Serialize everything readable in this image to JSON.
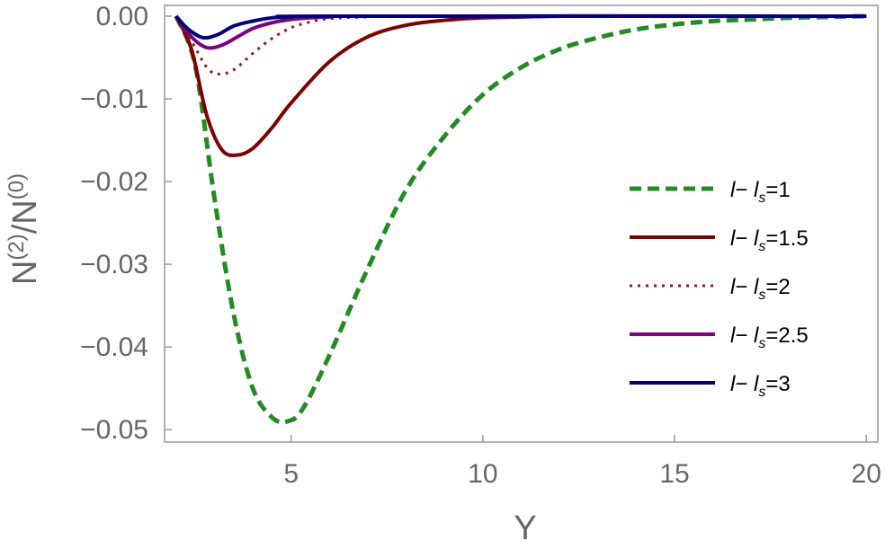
{
  "chart_data": {
    "type": "line",
    "title": "",
    "xlabel": "Y",
    "ylabel": "N(2)/N(0)",
    "ylabel_parts": {
      "n1": "N",
      "sup1": "(2)",
      "slash": "/",
      "n2": "N",
      "sup2": "(0)"
    },
    "xlim": [
      1.7,
      20.3
    ],
    "ylim": [
      -0.0515,
      0.0013
    ],
    "x_ticks": [
      5,
      10,
      15,
      20
    ],
    "x_tick_labels": [
      "5",
      "10",
      "15",
      "20"
    ],
    "y_ticks": [
      0,
      -0.01,
      -0.02,
      -0.03,
      -0.04,
      -0.05
    ],
    "y_tick_labels": [
      "0.00",
      "−0.01",
      "−0.02",
      "−0.03",
      "−0.04",
      "−0.05"
    ],
    "grid": false,
    "legend_position": "right",
    "series": [
      {
        "name": "l− l_s=1",
        "label": {
          "a": "l",
          "b": "− ",
          "c": "l",
          "sub": "s",
          "d": "=1"
        },
        "color": "#228b22",
        "dash": "dashed",
        "width": 5,
        "x": [
          2,
          2.5,
          3,
          3.5,
          4,
          4.5,
          4.9,
          5.3,
          6,
          7,
          8,
          9,
          10,
          11,
          12,
          13,
          14,
          15,
          16,
          17,
          18,
          19,
          20
        ],
        "y": [
          0,
          -0.006,
          -0.022,
          -0.036,
          -0.045,
          -0.0485,
          -0.049,
          -0.0475,
          -0.041,
          -0.0305,
          -0.021,
          -0.0145,
          -0.0095,
          -0.0062,
          -0.004,
          -0.0026,
          -0.0016,
          -0.001,
          -0.0006,
          -0.0004,
          -0.0002,
          -0.0001,
          0
        ]
      },
      {
        "name": "l− l_s=1.5",
        "label": {
          "a": "l",
          "b": "− ",
          "c": "l",
          "sub": "s",
          "d": "=1.5"
        },
        "color": "#800000",
        "dash": "solid",
        "width": 4,
        "x": [
          2,
          2.4,
          2.8,
          3.2,
          3.6,
          4,
          4.5,
          5,
          6,
          7,
          8,
          9,
          10,
          11,
          12,
          14,
          20
        ],
        "y": [
          0,
          -0.004,
          -0.012,
          -0.0162,
          -0.0168,
          -0.016,
          -0.0135,
          -0.0105,
          -0.0055,
          -0.0025,
          -0.0011,
          -0.0005,
          -0.0002,
          -0.0001,
          0,
          0,
          0
        ]
      },
      {
        "name": "l− l_s=2",
        "label": {
          "a": "l",
          "b": "− ",
          "c": "l",
          "sub": "s",
          "d": "=2"
        },
        "color": "#8b1a1a",
        "dash": "dotted",
        "width": 3,
        "x": [
          2,
          2.4,
          2.8,
          3.1,
          3.5,
          4,
          4.5,
          5,
          5.5,
          6,
          7,
          8,
          20
        ],
        "y": [
          0,
          -0.003,
          -0.0062,
          -0.007,
          -0.0065,
          -0.0045,
          -0.0027,
          -0.0014,
          -0.0007,
          -0.0003,
          -0.0001,
          0,
          0
        ]
      },
      {
        "name": "l− l_s=2.5",
        "label": {
          "a": "l",
          "b": "− ",
          "c": "l",
          "sub": "s",
          "d": "=2.5"
        },
        "color": "#800080",
        "dash": "solid",
        "width": 4,
        "x": [
          2,
          2.4,
          2.8,
          3.2,
          3.6,
          4,
          4.5,
          5,
          5.5,
          6,
          7,
          20
        ],
        "y": [
          0,
          -0.0025,
          -0.0038,
          -0.0035,
          -0.0025,
          -0.0015,
          -0.0008,
          -0.0004,
          -0.0002,
          -0.0001,
          0,
          0
        ]
      },
      {
        "name": "l− l_s=3",
        "label": {
          "a": "l",
          "b": "− ",
          "c": "l",
          "sub": "s",
          "d": "=3"
        },
        "color": "#000080",
        "dash": "solid",
        "width": 4,
        "x": [
          2,
          2.3,
          2.7,
          3.1,
          3.5,
          4,
          4.5,
          5,
          6,
          20
        ],
        "y": [
          0,
          -0.0015,
          -0.0026,
          -0.0022,
          -0.0012,
          -0.0006,
          -0.0002,
          -0.0001,
          0,
          0
        ]
      }
    ]
  }
}
